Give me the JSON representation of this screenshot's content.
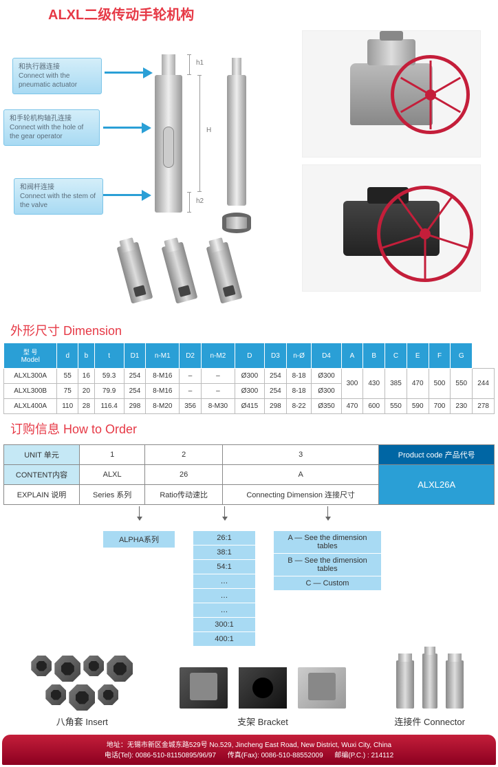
{
  "title": "ALXL二级传动手轮机构",
  "callouts": [
    {
      "cn": "和执行器连接",
      "en": "Connect with the pneumatic actuator"
    },
    {
      "cn": "和手轮机构轴孔连接",
      "en": "Connect with the hole of the gear operator"
    },
    {
      "cn": "和阀杆连接",
      "en": "Connect with the stem of the valve"
    }
  ],
  "dims": {
    "h1": "h1",
    "H": "H",
    "h2": "h2"
  },
  "dimension": {
    "title": "外形尺寸 Dimension",
    "headers_cn": "型 号",
    "headers_en": "Model",
    "cols": [
      "d",
      "b",
      "t",
      "D1",
      "n-M1",
      "D2",
      "n-M2",
      "D",
      "D3",
      "n-Ø",
      "D4",
      "A",
      "B",
      "C",
      "E",
      "F",
      "G"
    ],
    "rows": [
      {
        "model": "ALXL300A",
        "d": "55",
        "b": "16",
        "t": "59.3",
        "D1": "254",
        "nM1": "8-M16",
        "D2": "–",
        "nM2": "–",
        "D": "Ø300",
        "D3": "254",
        "nO": "8-18",
        "D4": "Ø300",
        "A": "300",
        "B": "430",
        "C": "385",
        "E": "470",
        "F": "500",
        "G1": "550",
        "G2": "244"
      },
      {
        "model": "ALXL300B",
        "d": "75",
        "b": "20",
        "t": "79.9",
        "D1": "254",
        "nM1": "8-M16",
        "D2": "–",
        "nM2": "–",
        "D": "Ø300",
        "D3": "254",
        "nO": "8-18",
        "D4": "Ø300",
        "A": "300",
        "B": "430",
        "C": "385",
        "E": "470",
        "F": "500",
        "G1": "550",
        "G2": "244"
      },
      {
        "model": "ALXL400A",
        "d": "110",
        "b": "28",
        "t": "116.4",
        "D1": "298",
        "nM1": "8-M20",
        "D2": "356",
        "nM2": "8-M30",
        "D": "Ø415",
        "D3": "298",
        "nO": "8-22",
        "D4": "Ø350",
        "A": "470",
        "B": "600",
        "C": "550",
        "E": "590",
        "F": "700",
        "G1": "230",
        "G2": "278"
      }
    ]
  },
  "order": {
    "title": "订购信息 How to Order",
    "unit": "UNIT 单元",
    "content": "CONTENT内容",
    "explain": "EXPLAIN 说明",
    "cols": [
      "1",
      "2",
      "3"
    ],
    "row_content": [
      "ALXL",
      "26",
      "A"
    ],
    "row_explain": [
      "Series 系列",
      "Ratio传动速比",
      "Connecting Dimension 连接尺寸"
    ],
    "product_code_label": "Product code 产品代号",
    "product_code": "ALXL26A",
    "flow": {
      "col1": [
        "ALPHA系列"
      ],
      "col2": [
        "26:1",
        "38:1",
        "54:1",
        "…",
        "…",
        "…",
        "300:1",
        "400:1"
      ],
      "col3": [
        "A — See the dimension tables",
        "B — See the dimension tables",
        "C — Custom"
      ]
    }
  },
  "products": {
    "insert": "八角套 Insert",
    "bracket": "支架 Bracket",
    "connector": "连接件 Connector"
  },
  "footer": {
    "addr": "地址：无锡市新区金城东路529号  No.529, Jincheng East Road, New District, Wuxi City, China",
    "tel": "电话(Tel): 0086-510-81150895/96/97",
    "fax": "传真(Fax): 0086-510-88552009",
    "pc": "邮编(P.C.) : 214112"
  }
}
